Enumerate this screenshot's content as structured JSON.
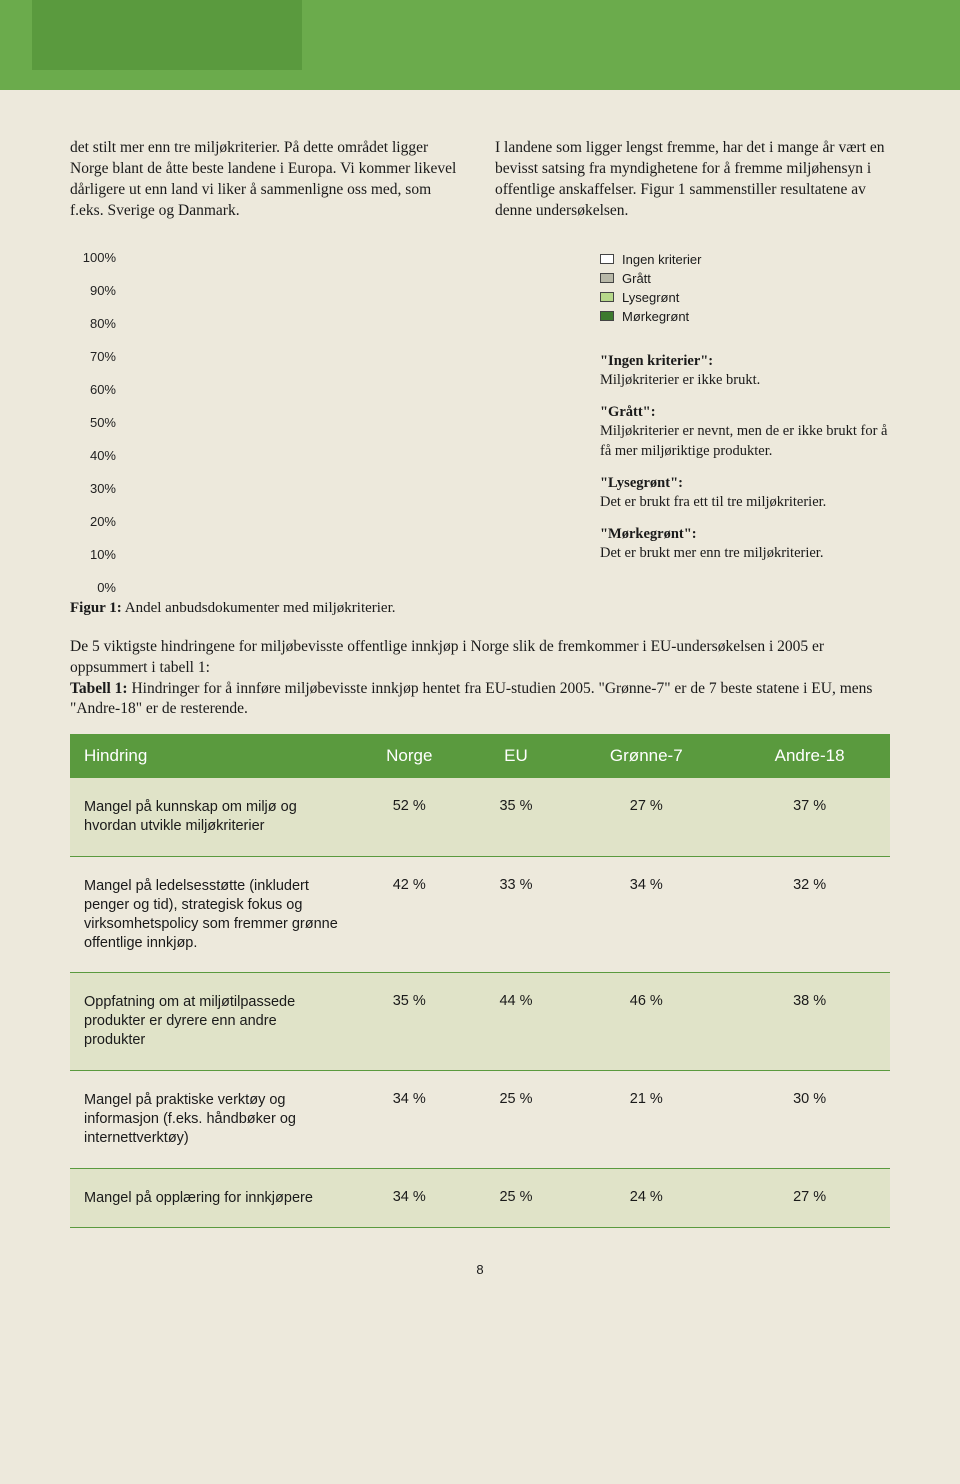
{
  "colors": {
    "header": "#6bab4c",
    "header_inset": "#5a9a3e",
    "table_header": "#5a9a3e",
    "row_shade": "#e0e3c8",
    "page_bg": "#ede9dc"
  },
  "paragraphs": {
    "left": "det stilt mer enn tre miljøkriterier. På dette området ligger Norge blant de åtte beste landene i Europa. Vi kommer likevel dårligere ut enn land vi liker å sammenligne oss med, som f.eks. Sverige og Danmark.",
    "right": "I landene som ligger lengst fremme, har det i mange år vært en bevisst satsing fra myndighetene for å fremme miljøhensyn i offentlige anskaffelser. Figur 1 sammenstiller resultatene av denne undersøkelsen."
  },
  "chart": {
    "type": "bar",
    "y_ticks": [
      "100%",
      "90%",
      "80%",
      "70%",
      "60%",
      "50%",
      "40%",
      "30%",
      "20%",
      "10%",
      "0%"
    ],
    "y_tick_fontsize": 13,
    "legend": [
      {
        "label": "Ingen kriterier",
        "fill": "#ffffff",
        "border": "#444"
      },
      {
        "label": "Grått",
        "fill": "#b8b8a8",
        "border": "#444"
      },
      {
        "label": "Lysegrønt",
        "fill": "#b6d88a",
        "border": "#444"
      },
      {
        "label": "Mørkegrønt",
        "fill": "#3d7a2e",
        "border": "#444"
      }
    ]
  },
  "definitions": {
    "d1_title": "\"Ingen kriterier\":",
    "d1_body": "Miljøkriterier er ikke brukt.",
    "d2_title": "\"Grått\":",
    "d2_body": "Miljøkriterier er nevnt, men de er ikke brukt for å få mer miljøriktige produkter.",
    "d3_title": "\"Lysegrønt\":",
    "d3_body": "Det er brukt fra ett til tre miljøkriterier.",
    "d4_title": "\"Mørkegrønt\":",
    "d4_body": "Det er brukt mer enn tre miljøkriterier."
  },
  "figure_caption_bold": "Figur 1:",
  "figure_caption": " Andel anbudsdokumenter med miljøkriterier.",
  "intro": "De 5 viktigste hindringene for miljøbevisste offentlige innkjøp i Norge slik de fremkommer i EU-undersøkelsen i 2005 er oppsummert i tabell 1:",
  "table_caption_bold": "Tabell 1:",
  "table_caption": " Hindringer for å innføre miljøbevisste innkjøp hentet fra EU-studien 2005. \"Grønne-7\" er de 7 beste statene i EU, mens \"Andre-18\" er de resterende.",
  "table": {
    "columns": [
      "Hindring",
      "Norge",
      "EU",
      "Grønne-7",
      "Andre-18"
    ],
    "rows": [
      {
        "shaded": true,
        "cells": [
          "Mangel på kunnskap om miljø og hvordan utvikle miljøkriterier",
          "52 %",
          "35 %",
          "27 %",
          "37 %"
        ]
      },
      {
        "shaded": false,
        "cells": [
          "Mangel på ledelsesstøtte (inkludert penger og tid), strategisk fokus og virksomhetspolicy som fremmer grønne offentlige innkjøp.",
          "42 %",
          "33 %",
          "34 %",
          "32 %"
        ]
      },
      {
        "shaded": true,
        "cells": [
          "Oppfatning om at miljøtilpassede produkter er dyrere enn andre produkter",
          "35 %",
          "44 %",
          "46 %",
          "38 %"
        ]
      },
      {
        "shaded": false,
        "cells": [
          "Mangel på praktiske verktøy og informasjon (f.eks. håndbøker og internettverktøy)",
          "34 %",
          "25 %",
          "21 %",
          "30 %"
        ]
      },
      {
        "shaded": true,
        "cells": [
          "Mangel på opplæring for innkjøpere",
          "34 %",
          "25 %",
          "24 %",
          "27 %"
        ]
      }
    ]
  },
  "page_number": "8"
}
